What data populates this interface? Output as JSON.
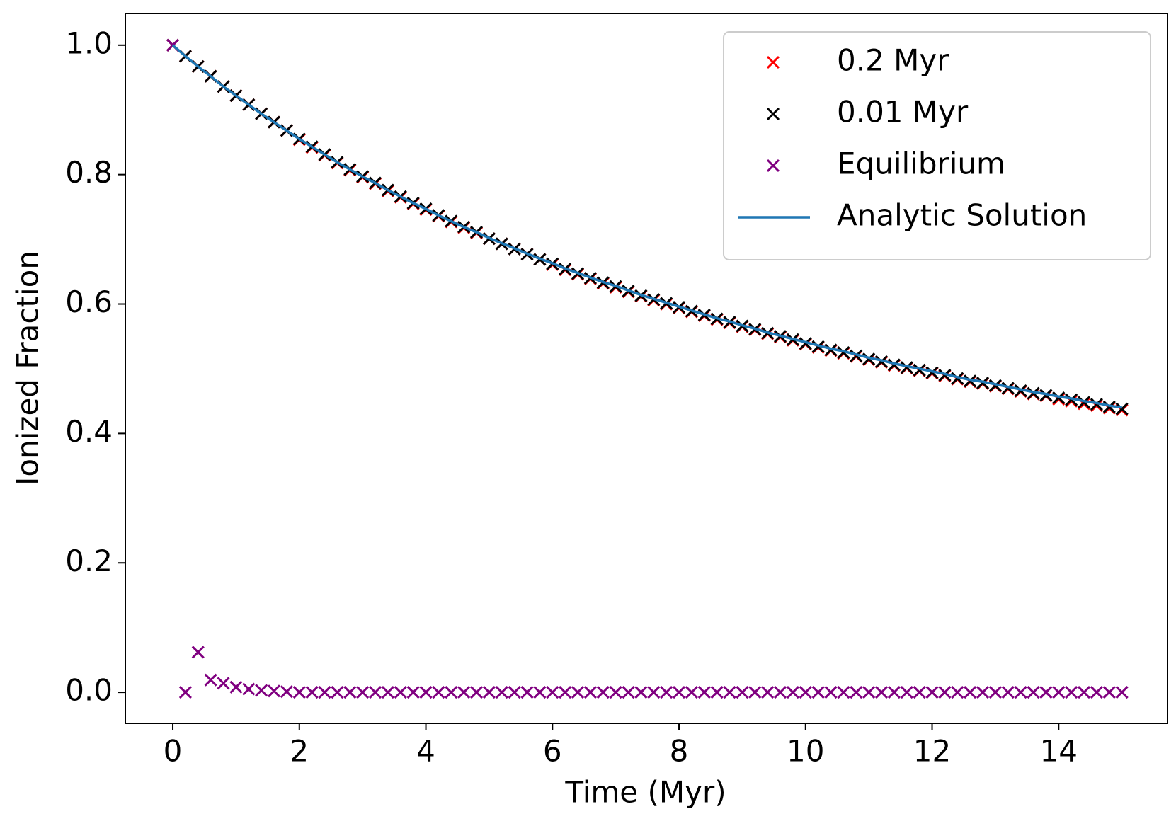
{
  "chart_data": {
    "type": "scatter",
    "xlabel": "Time (Myr)",
    "ylabel": "Ionized Fraction",
    "x": [
      0,
      0.2,
      0.4,
      0.6,
      0.8,
      1,
      1.2,
      1.4,
      1.6,
      1.8,
      2,
      2.2,
      2.4,
      2.6,
      2.8,
      3,
      3.2,
      3.4,
      3.6,
      3.8,
      4,
      4.2,
      4.4,
      4.6,
      4.8,
      5,
      5.2,
      5.4,
      5.6,
      5.8,
      6,
      6.2,
      6.4,
      6.6,
      6.8,
      7,
      7.2,
      7.4,
      7.6,
      7.8,
      8,
      8.2,
      8.4,
      8.6,
      8.8,
      9,
      9.2,
      9.4,
      9.6,
      9.8,
      10,
      10.2,
      10.4,
      10.6,
      10.8,
      11,
      11.2,
      11.4,
      11.6,
      11.8,
      12,
      12.2,
      12.4,
      12.6,
      12.8,
      13,
      13.2,
      13.4,
      13.6,
      13.8,
      14,
      14.2,
      14.4,
      14.6,
      14.8,
      15
    ],
    "series": [
      {
        "name": "0.2 Myr",
        "type": "scatter",
        "color": "#ff0000",
        "values": [
          1.0,
          0.983,
          0.967,
          0.952,
          0.936,
          0.922,
          0.908,
          0.894,
          0.881,
          0.868,
          0.854,
          0.842,
          0.83,
          0.818,
          0.807,
          0.796,
          0.786,
          0.775,
          0.765,
          0.755,
          0.746,
          0.736,
          0.727,
          0.718,
          0.71,
          0.701,
          0.693,
          0.685,
          0.677,
          0.669,
          0.661,
          0.653,
          0.646,
          0.639,
          0.632,
          0.626,
          0.619,
          0.612,
          0.606,
          0.6,
          0.594,
          0.588,
          0.582,
          0.576,
          0.571,
          0.565,
          0.56,
          0.554,
          0.549,
          0.544,
          0.538,
          0.533,
          0.528,
          0.524,
          0.519,
          0.514,
          0.51,
          0.505,
          0.501,
          0.497,
          0.493,
          0.489,
          0.484,
          0.48,
          0.477,
          0.473,
          0.469,
          0.465,
          0.461,
          0.458,
          0.453,
          0.45,
          0.446,
          0.443,
          0.439,
          0.436
        ]
      },
      {
        "name": "0.01 Myr",
        "type": "scatter",
        "color": "#000000",
        "values": [
          1.0,
          0.983,
          0.967,
          0.952,
          0.936,
          0.922,
          0.908,
          0.894,
          0.881,
          0.868,
          0.855,
          0.843,
          0.831,
          0.819,
          0.808,
          0.797,
          0.787,
          0.776,
          0.766,
          0.756,
          0.747,
          0.737,
          0.728,
          0.719,
          0.711,
          0.701,
          0.693,
          0.685,
          0.677,
          0.669,
          0.662,
          0.654,
          0.647,
          0.64,
          0.633,
          0.627,
          0.62,
          0.613,
          0.607,
          0.601,
          0.595,
          0.589,
          0.583,
          0.577,
          0.572,
          0.566,
          0.561,
          0.555,
          0.55,
          0.545,
          0.539,
          0.534,
          0.529,
          0.525,
          0.52,
          0.515,
          0.511,
          0.506,
          0.502,
          0.498,
          0.494,
          0.49,
          0.485,
          0.481,
          0.478,
          0.474,
          0.47,
          0.466,
          0.462,
          0.459,
          0.455,
          0.452,
          0.448,
          0.445,
          0.441,
          0.438
        ]
      },
      {
        "name": "Equilibrium",
        "type": "scatter",
        "color": "#800080",
        "values": [
          1.0,
          0,
          0.062,
          0.019,
          0.014,
          0.008,
          0.005,
          0.003,
          0.002,
          0.001,
          0,
          0,
          0,
          0,
          0,
          0,
          0,
          0,
          0,
          0,
          0,
          0,
          0,
          0,
          0,
          0,
          0,
          0,
          0,
          0,
          0,
          0,
          0,
          0,
          0,
          0,
          0,
          0,
          0,
          0,
          0,
          0,
          0,
          0,
          0,
          0,
          0,
          0,
          0,
          0,
          0,
          0,
          0,
          0,
          0,
          0,
          0,
          0,
          0,
          0,
          0,
          0,
          0,
          0,
          0,
          0,
          0,
          0,
          0,
          0,
          0,
          0,
          0,
          0,
          0,
          0
        ]
      },
      {
        "name": "Analytic Solution",
        "type": "line",
        "color": "#1f77b4",
        "values": [
          1.0,
          0.983,
          0.967,
          0.952,
          0.936,
          0.922,
          0.908,
          0.894,
          0.881,
          0.868,
          0.855,
          0.843,
          0.831,
          0.819,
          0.808,
          0.797,
          0.787,
          0.776,
          0.766,
          0.756,
          0.747,
          0.737,
          0.728,
          0.719,
          0.711,
          0.702,
          0.694,
          0.686,
          0.678,
          0.67,
          0.663,
          0.655,
          0.648,
          0.641,
          0.634,
          0.628,
          0.621,
          0.614,
          0.608,
          0.602,
          0.596,
          0.59,
          0.584,
          0.578,
          0.573,
          0.567,
          0.562,
          0.556,
          0.551,
          0.546,
          0.541,
          0.536,
          0.531,
          0.527,
          0.522,
          0.517,
          0.513,
          0.508,
          0.504,
          0.5,
          0.496,
          0.492,
          0.487,
          0.483,
          0.48,
          0.476,
          0.472,
          0.468,
          0.464,
          0.461,
          0.457,
          0.454,
          0.45,
          0.447,
          0.443,
          0.44
        ]
      }
    ],
    "xlim": [
      -0.75,
      15.72
    ],
    "ylim": [
      -0.048,
      1.049
    ],
    "xticks": [
      0,
      2,
      4,
      6,
      8,
      10,
      12,
      14
    ],
    "yticks": [
      {
        "value": 0,
        "label": "0.0"
      },
      0.2,
      0.4,
      0.6,
      0.8,
      {
        "value": 1,
        "label": "1.0"
      }
    ],
    "legend": "upper right",
    "grid": false
  }
}
